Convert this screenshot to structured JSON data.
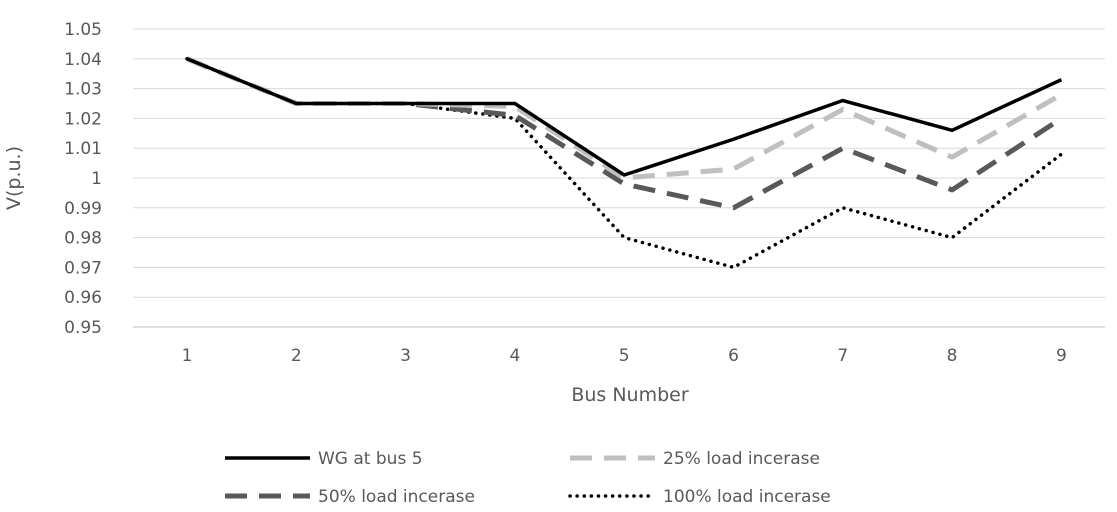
{
  "chart_data": {
    "type": "line",
    "title": "",
    "xlabel": "Bus Number",
    "ylabel": "V(p.u.)",
    "categories": [
      "1",
      "2",
      "3",
      "4",
      "5",
      "6",
      "7",
      "8",
      "9"
    ],
    "ylim": [
      0.95,
      1.05
    ],
    "yticks": [
      "1.05",
      "1.04",
      "1.03",
      "1.02",
      "1.01",
      "1",
      "0.99",
      "0.98",
      "0.97",
      "0.96",
      "0.95"
    ],
    "ytick_values": [
      1.05,
      1.04,
      1.03,
      1.02,
      1.01,
      1.0,
      0.99,
      0.98,
      0.97,
      0.96,
      0.95
    ],
    "grid": true,
    "legend_position": "bottom",
    "series": [
      {
        "name": "WG at bus 5",
        "style": "solid",
        "color": "#000000",
        "values": [
          1.04,
          1.025,
          1.025,
          1.025,
          1.001,
          1.013,
          1.026,
          1.016,
          1.033
        ]
      },
      {
        "name": "25% load  incerase",
        "style": "dashed",
        "color": "#bfbfbf",
        "values": [
          1.04,
          1.025,
          1.025,
          1.024,
          1.0,
          1.003,
          1.023,
          1.007,
          1.028
        ]
      },
      {
        "name": "50% load  incerase",
        "style": "dashed",
        "color": "#595959",
        "values": [
          1.04,
          1.025,
          1.025,
          1.021,
          0.998,
          0.99,
          1.01,
          0.996,
          1.02
        ]
      },
      {
        "name": "100% load  incerase",
        "style": "dotted",
        "color": "#000000",
        "values": [
          1.04,
          1.025,
          1.025,
          1.02,
          0.98,
          0.97,
          0.99,
          0.98,
          1.008
        ]
      }
    ]
  }
}
